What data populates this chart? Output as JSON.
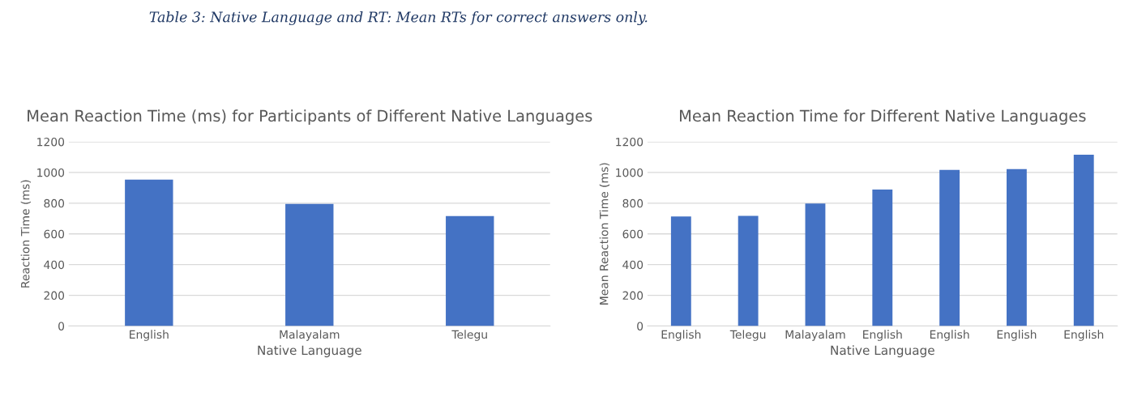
{
  "chart_data": [
    {
      "type": "bar",
      "title": "Mean Reaction Time (ms) for Participants of Different Native Languages",
      "xlabel": "Native Language",
      "ylabel": "Reaction Time (ms)",
      "annotations": [
        "Table 3: Native Language and RT: Mean RTs for correct answers only."
      ],
      "categories": [
        "English",
        "Malayalam",
        "Telegu"
      ],
      "values": [
        953,
        795,
        716
      ],
      "color": "#4472c4",
      "ylim": [
        0,
        1200
      ],
      "yticks": [
        0,
        200,
        400,
        600,
        800,
        1000,
        1200
      ],
      "grid": "y"
    },
    {
      "type": "bar",
      "title": "Mean Reaction Time for Different Native Languages",
      "xlabel": "Native Language",
      "ylabel": "Mean Reaction Time (ms)",
      "categories": [
        "English",
        "Telegu",
        "Malayalam",
        "English",
        "English",
        "English",
        "English"
      ],
      "values": [
        713,
        718,
        798,
        889,
        1017,
        1022,
        1116
      ],
      "color": "#4472c4",
      "ylim": [
        0,
        1200
      ],
      "yticks": [
        0,
        200,
        400,
        600,
        800,
        1000,
        1200
      ],
      "grid": "y"
    }
  ]
}
